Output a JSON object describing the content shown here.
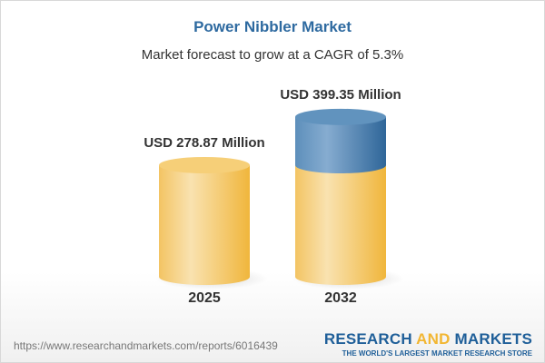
{
  "header": {
    "title": "Power Nibbler Market",
    "subtitle": "Market forecast to grow at a CAGR of 5.3%"
  },
  "chart_data": {
    "type": "bar",
    "style": "3d-cylinder",
    "categories": [
      "2025",
      "2032"
    ],
    "values": [
      278.87,
      399.35
    ],
    "data_labels": [
      "USD 278.87 Million",
      "USD 399.35 Million"
    ],
    "unit": "USD Million",
    "cagr": "5.3%",
    "colors": {
      "base": "#f2c35c",
      "growth": "#4f86b5"
    }
  },
  "footer": {
    "url": "https://www.researchandmarkets.com/reports/6016439",
    "logo_word1": "RESEARCH",
    "logo_word2": "AND",
    "logo_word3": "MARKETS",
    "tagline": "THE WORLD'S LARGEST MARKET RESEARCH STORE"
  }
}
